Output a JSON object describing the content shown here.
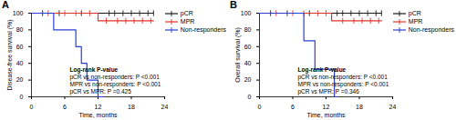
{
  "chart_data": [
    {
      "type": "line",
      "title": "A",
      "xlabel": "Time, months",
      "ylabel": "Disease-free survival (%)",
      "xlim": [
        0,
        24
      ],
      "xticks": [
        0,
        6,
        12,
        18,
        24
      ],
      "ylim": [
        0,
        100
      ],
      "yticks": [
        0,
        20,
        40,
        60,
        80,
        100
      ],
      "grid": false,
      "legend": "top-right",
      "line_style": "step",
      "series": [
        {
          "name": "pCR",
          "color": "#1a1a1a",
          "marker": "|",
          "x": [
            0,
            22
          ],
          "values": [
            100,
            100
          ],
          "censored": {
            "x": [
              2,
              5,
              9,
              14,
              15,
              16.5,
              18,
              19.5,
              21,
              22
            ],
            "values": [
              100,
              100,
              100,
              100,
              100,
              100,
              100,
              100,
              100,
              100
            ]
          }
        },
        {
          "name": "MPR",
          "color": "#e3352a",
          "marker": "|",
          "x": [
            0,
            12,
            22
          ],
          "values": [
            100,
            91,
            91
          ],
          "censored": {
            "x": [
              3,
              6,
              8,
              10.5,
              13.5,
              15.5,
              17,
              18.5,
              20,
              21.5
            ],
            "values": [
              100,
              100,
              100,
              100,
              91,
              91,
              91,
              91,
              91,
              91
            ]
          }
        },
        {
          "name": "Non-responders",
          "color": "#2b3fd6",
          "marker": "|",
          "x": [
            0,
            4,
            8,
            9,
            10,
            12,
            13
          ],
          "values": [
            100,
            80,
            60,
            40,
            20,
            0,
            0
          ],
          "censored": {
            "x": [],
            "values": []
          }
        }
      ],
      "annotations": [
        "Log-rank P-value",
        "pCR vs non-responders: P <0.001",
        "MPR vs non-responders: P <0.001",
        "pCR vs MPR: P =0.425"
      ]
    },
    {
      "type": "line",
      "title": "B",
      "xlabel": "Time, months",
      "ylabel": "Overall survival (%)",
      "xlim": [
        0,
        24
      ],
      "xticks": [
        0,
        6,
        12,
        18,
        24
      ],
      "ylim": [
        0,
        100
      ],
      "yticks": [
        0,
        20,
        40,
        60,
        80,
        100
      ],
      "grid": false,
      "legend": "top-right",
      "line_style": "step",
      "series": [
        {
          "name": "pCR",
          "color": "#1a1a1a",
          "marker": "|",
          "x": [
            0,
            22
          ],
          "values": [
            100,
            100
          ],
          "censored": {
            "x": [
              2,
              5,
              9,
              14,
              15,
              16.5,
              18,
              19.5,
              21,
              22
            ],
            "values": [
              100,
              100,
              100,
              100,
              100,
              100,
              100,
              100,
              100,
              100
            ]
          }
        },
        {
          "name": "MPR",
          "color": "#e3352a",
          "marker": "|",
          "x": [
            0,
            13,
            22
          ],
          "values": [
            100,
            91,
            91
          ],
          "censored": {
            "x": [
              3,
              6,
              8,
              10.5,
              12,
              15,
              17,
              18.5,
              20,
              21.5
            ],
            "values": [
              100,
              100,
              100,
              100,
              100,
              91,
              91,
              91,
              91,
              91
            ]
          }
        },
        {
          "name": "Non-responders",
          "color": "#2b3fd6",
          "marker": "|",
          "x": [
            0,
            8,
            10,
            13.5,
            14
          ],
          "values": [
            100,
            67,
            33,
            0,
            0
          ],
          "censored": {
            "x": [],
            "values": []
          }
        }
      ],
      "annotations": [
        "Log-rank P-value",
        "pCR vs non-responders: P <0.001",
        "MPR vs non-responders: P <0.001",
        "pCR vs MPR: P =0.346"
      ]
    }
  ]
}
